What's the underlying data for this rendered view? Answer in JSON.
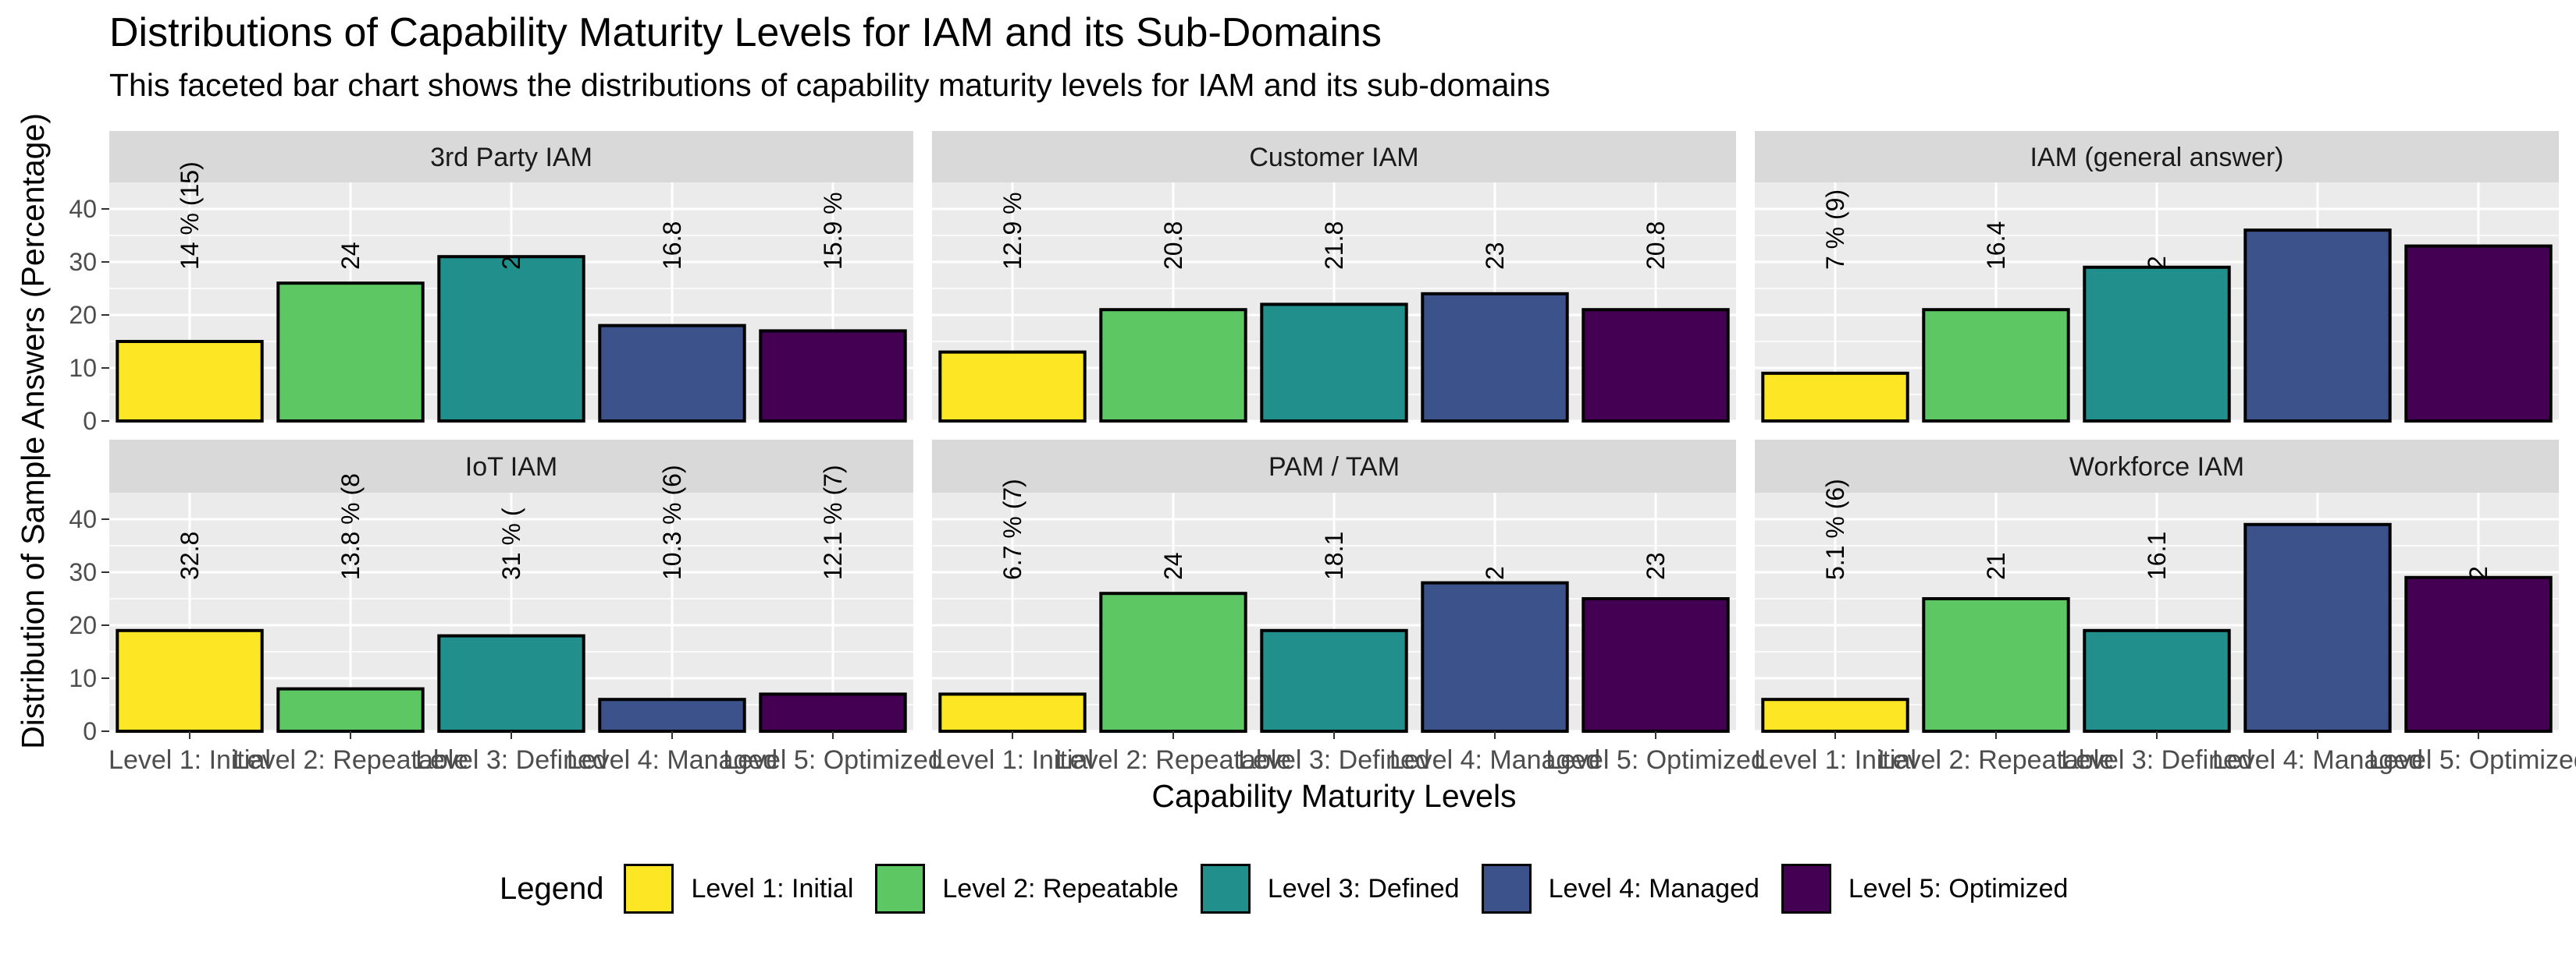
{
  "chart_data": {
    "type": "bar",
    "title": "Distributions of Capability Maturity Levels for IAM and its Sub-Domains",
    "subtitle": "This faceted bar chart shows the distributions of capability maturity levels for IAM and its sub-domains",
    "xlabel": "Capability Maturity Levels",
    "ylabel": "Distribution of Sample Answers (Percentage)",
    "ylim": [
      0,
      45
    ],
    "yticks": [
      0,
      10,
      20,
      30,
      40
    ],
    "categories": [
      "Level 1: Initial",
      "Level 2: Repeatable",
      "Level 3: Defined",
      "Level 4: Managed",
      "Level 5: Optimized"
    ],
    "colors": [
      "#FDE725",
      "#5DC863",
      "#21908C",
      "#3B528B",
      "#440154"
    ],
    "legend_title": "Legend",
    "legend_position": "bottom",
    "grid": true,
    "facets": [
      {
        "name": "3rd Party IAM",
        "values": [
          15,
          26,
          31,
          18,
          17
        ],
        "labels": [
          "14 % (15)",
          "24",
          "2",
          "16.8",
          "15.9 %"
        ]
      },
      {
        "name": "Customer IAM",
        "values": [
          13,
          21,
          22,
          24,
          21
        ],
        "labels": [
          "12.9 %",
          "20.8",
          "21.8",
          "23",
          "20.8"
        ]
      },
      {
        "name": "IAM (general answer)",
        "values": [
          9,
          21,
          29,
          36,
          33
        ],
        "labels": [
          "7 % (9)",
          "16.4",
          "2",
          "",
          ""
        ]
      },
      {
        "name": "IoT IAM",
        "values": [
          19,
          8,
          18,
          6,
          7
        ],
        "labels": [
          "32.8",
          "13.8 % (8",
          "31 % (",
          "10.3 % (6)",
          "12.1 % (7)"
        ]
      },
      {
        "name": "PAM / TAM",
        "values": [
          7,
          26,
          19,
          28,
          25
        ],
        "labels": [
          "6.7 % (7)",
          "24",
          "18.1",
          "2",
          "23"
        ]
      },
      {
        "name": "Workforce IAM",
        "values": [
          6,
          25,
          19,
          39,
          29
        ],
        "labels": [
          "5.1 % (6)",
          "21",
          "16.1",
          "",
          "2"
        ]
      }
    ]
  }
}
